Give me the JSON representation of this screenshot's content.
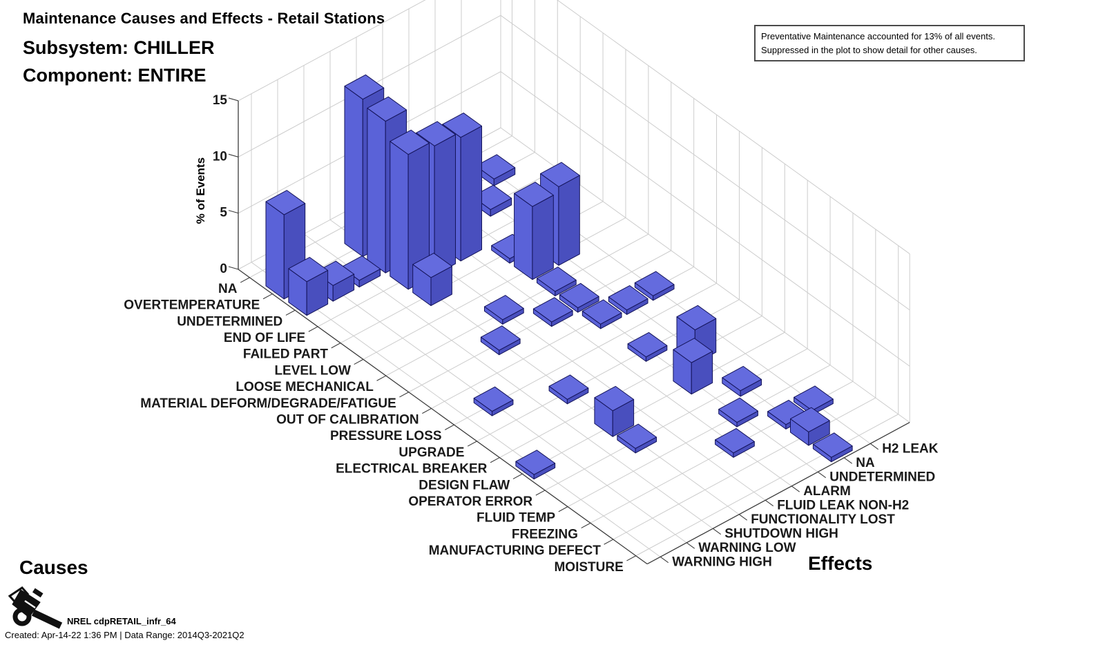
{
  "header": {
    "title": "Maintenance Causes and Effects - Retail Stations",
    "subsystem": "Subsystem: CHILLER",
    "component": "Component: ENTIRE"
  },
  "note": {
    "line1": "Preventative Maintenance accounted for 13% of all events.",
    "line2": "Suppressed in the plot to show detail for other causes."
  },
  "axes": {
    "causes_label": "Causes",
    "effects_label": "Effects",
    "z_label": "% of Events"
  },
  "footer": {
    "dataset": "NREL cdpRETAIL_infr_64",
    "created": "Created: Apr-14-22  1:36 PM | Data Range: 2014Q3-2021Q2"
  },
  "chart_data": {
    "type": "bar",
    "projection": "3d",
    "title": "Maintenance Causes and Effects - Retail Stations",
    "subtitle": [
      "Subsystem: CHILLER",
      "Component: ENTIRE"
    ],
    "zlabel": "% of Events",
    "zticks": [
      0,
      5,
      10,
      15
    ],
    "zlim": [
      0,
      15
    ],
    "grid": true,
    "note": "Preventative Maintenance accounted for 13% of all events. Suppressed in the plot to show detail for other causes.",
    "causes": [
      "NA",
      "OVERTEMPERATURE",
      "UNDETERMINED",
      "END OF LIFE",
      "FAILED PART",
      "LEVEL LOW",
      "LOOSE MECHANICAL",
      "MATERIAL DEFORM/DEGRADE/FATIGUE",
      "OUT OF CALIBRATION",
      "PRESSURE LOSS",
      "UPGRADE",
      "ELECTRICAL BREAKER",
      "DESIGN FLAW",
      "OPERATOR ERROR",
      "FLUID TEMP",
      "FREEZING",
      "MANUFACTURING DEFECT",
      "MOISTURE"
    ],
    "effects": [
      "WARNING HIGH",
      "WARNING LOW",
      "SHUTDOWN HIGH",
      "FUNCTIONALITY LOST",
      "FLUID LEAK NON-H2",
      "ALARM",
      "UNDETERMINED",
      "NA",
      "H2 LEAK"
    ],
    "bars": [
      {
        "cause": "OVERTEMPERATURE",
        "effect": "WARNING HIGH",
        "value": 7.5
      },
      {
        "cause": "UNDETERMINED",
        "effect": "WARNING HIGH",
        "value": 3.0
      },
      {
        "cause": "UNDETERMINED",
        "effect": "WARNING LOW",
        "value": 1.4
      },
      {
        "cause": "UNDETERMINED",
        "effect": "SHUTDOWN HIGH",
        "value": 0.6
      },
      {
        "cause": "OVERTEMPERATURE",
        "effect": "FUNCTIONALITY LOST",
        "value": 14.0
      },
      {
        "cause": "UNDETERMINED",
        "effect": "FUNCTIONALITY LOST",
        "value": 13.5
      },
      {
        "cause": "END OF LIFE",
        "effect": "FUNCTIONALITY LOST",
        "value": 12.0
      },
      {
        "cause": "END OF LIFE",
        "effect": "FLUID LEAK NON-H2",
        "value": 11.5
      },
      {
        "cause": "END OF LIFE",
        "effect": "ALARM",
        "value": 11.0
      },
      {
        "cause": "FAILED PART",
        "effect": "FUNCTIONALITY LOST",
        "value": 2.5
      },
      {
        "cause": "UNDETERMINED",
        "effect": "NA",
        "value": 0.6
      },
      {
        "cause": "OVERTEMPERATURE",
        "effect": "H2 LEAK",
        "value": 0.6
      },
      {
        "cause": "LEVEL LOW",
        "effect": "UNDETERMINED",
        "value": 6.5
      },
      {
        "cause": "LEVEL LOW",
        "effect": "NA",
        "value": 7.0
      },
      {
        "cause": "FAILED PART",
        "effect": "UNDETERMINED",
        "value": 0.4
      },
      {
        "cause": "LOOSE MECHANICAL",
        "effect": "UNDETERMINED",
        "value": 0.4
      },
      {
        "cause": "LOOSE MECHANICAL",
        "effect": "FLUID LEAK NON-H2",
        "value": 0.4
      },
      {
        "cause": "MATERIAL DEFORM/DEGRADE/FATIGUE",
        "effect": "FUNCTIONALITY LOST",
        "value": 0.4
      },
      {
        "cause": "MATERIAL DEFORM/DEGRADE/FATIGUE",
        "effect": "ALARM",
        "value": 0.4
      },
      {
        "cause": "MATERIAL DEFORM/DEGRADE/FATIGUE",
        "effect": "UNDETERMINED",
        "value": 0.4
      },
      {
        "cause": "OUT OF CALIBRATION",
        "effect": "UNDETERMINED",
        "value": 0.4
      },
      {
        "cause": "OUT OF CALIBRATION",
        "effect": "NA",
        "value": 0.4
      },
      {
        "cause": "OUT OF CALIBRATION",
        "effect": "H2 LEAK",
        "value": 0.4
      },
      {
        "cause": "PRESSURE LOSS",
        "effect": "WARNING LOW",
        "value": 0.4
      },
      {
        "cause": "DESIGN FLAW",
        "effect": "WARNING HIGH",
        "value": 0.4
      },
      {
        "cause": "UPGRADE",
        "effect": "FUNCTIONALITY LOST",
        "value": 0.4
      },
      {
        "cause": "DESIGN FLAW",
        "effect": "FUNCTIONALITY LOST",
        "value": 2.3
      },
      {
        "cause": "OPERATOR ERROR",
        "effect": "FUNCTIONALITY LOST",
        "value": 0.4
      },
      {
        "cause": "UPGRADE",
        "effect": "UNDETERMINED",
        "value": 0.4
      },
      {
        "cause": "ELECTRICAL BREAKER",
        "effect": "NA",
        "value": 3.0
      },
      {
        "cause": "DESIGN FLAW",
        "effect": "UNDETERMINED",
        "value": 2.8
      },
      {
        "cause": "OPERATOR ERROR",
        "effect": "NA",
        "value": 0.5
      },
      {
        "cause": "FLUID TEMP",
        "effect": "UNDETERMINED",
        "value": 0.4
      },
      {
        "cause": "FREEZING",
        "effect": "ALARM",
        "value": 0.4
      },
      {
        "cause": "FREEZING",
        "effect": "H2 LEAK",
        "value": 0.4
      },
      {
        "cause": "FREEZING",
        "effect": "NA",
        "value": 0.4
      },
      {
        "cause": "MANUFACTURING DEFECT",
        "effect": "NA",
        "value": 1.2
      },
      {
        "cause": "MOISTURE",
        "effect": "NA",
        "value": 0.4
      }
    ],
    "colors": {
      "bar_top": "#646bde",
      "bar_left": "#5a62d8",
      "bar_right": "#494fbe",
      "bar_edge": "#14145a",
      "grid": "#cccccc",
      "axis": "#3c3c3c",
      "label": "#1a1a1a"
    }
  }
}
